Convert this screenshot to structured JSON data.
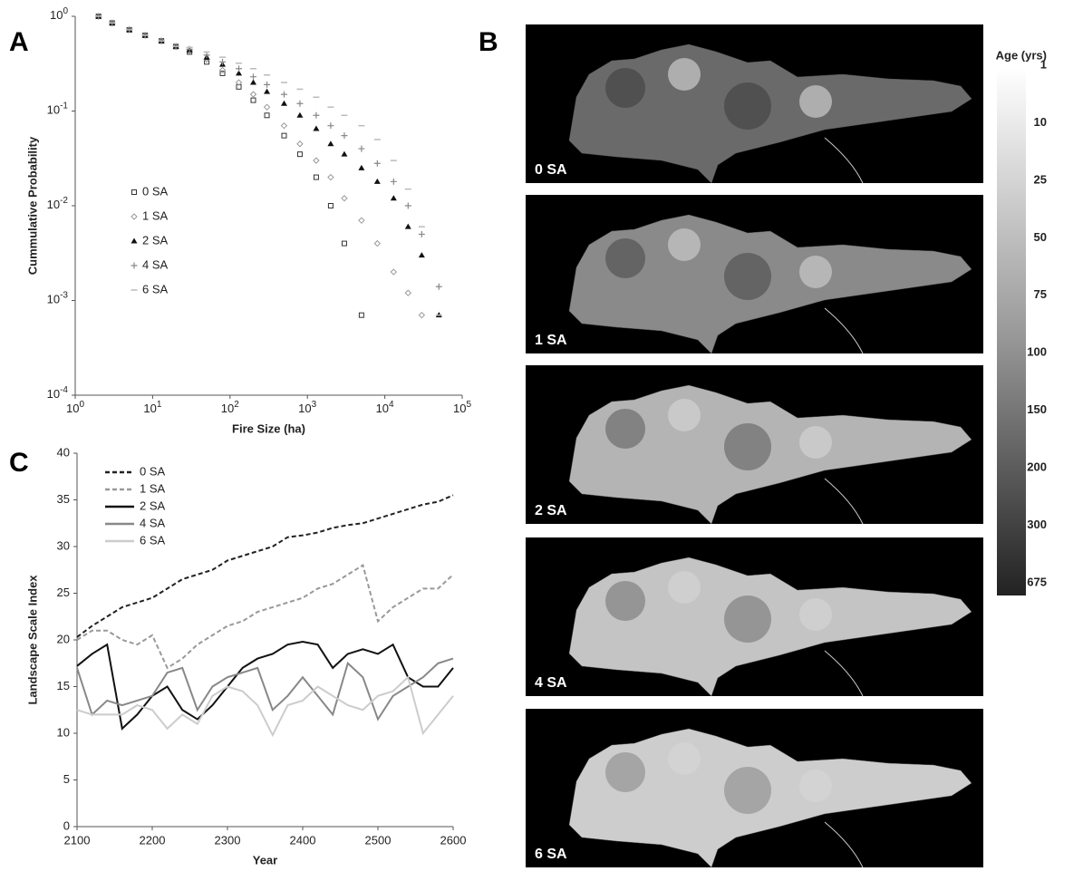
{
  "chart_data": [
    {
      "type": "scatter",
      "panel_label": "A",
      "xlabel": "Fire Size (ha)",
      "ylabel": "Cummulative Probability",
      "xscale": "log",
      "yscale": "log",
      "xlim": [
        1,
        100000
      ],
      "ylim": [
        0.0001,
        1
      ],
      "xticks": [
        {
          "value": 1,
          "label": "10",
          "exponent": "0"
        },
        {
          "value": 10,
          "label": "10",
          "exponent": "1"
        },
        {
          "value": 100,
          "label": "10",
          "exponent": "2"
        },
        {
          "value": 1000,
          "label": "10",
          "exponent": "3"
        },
        {
          "value": 10000,
          "label": "10",
          "exponent": "4"
        },
        {
          "value": 100000,
          "label": "10",
          "exponent": "5"
        }
      ],
      "yticks": [
        {
          "value": 1,
          "label": "10",
          "exponent": "0"
        },
        {
          "value": 0.1,
          "label": "10",
          "exponent": "-1"
        },
        {
          "value": 0.01,
          "label": "10",
          "exponent": "-2"
        },
        {
          "value": 0.001,
          "label": "10",
          "exponent": "-3"
        },
        {
          "value": 0.0001,
          "label": "10",
          "exponent": "-4"
        }
      ],
      "series": [
        {
          "name": "0 SA",
          "color": "#333333",
          "marker": "square",
          "x": [
            2,
            3,
            5,
            8,
            13,
            20,
            30,
            50,
            80,
            130,
            200,
            300,
            500,
            800,
            1300,
            2000,
            3000,
            5000
          ],
          "values": [
            1,
            0.85,
            0.72,
            0.63,
            0.55,
            0.48,
            0.42,
            0.33,
            0.25,
            0.18,
            0.13,
            0.09,
            0.055,
            0.035,
            0.02,
            0.01,
            0.004,
            0.0007
          ]
        },
        {
          "name": "1 SA",
          "color": "#999999",
          "marker": "diamond",
          "x": [
            2,
            3,
            5,
            8,
            13,
            20,
            30,
            50,
            80,
            130,
            200,
            300,
            500,
            800,
            1300,
            2000,
            3000,
            5000,
            8000,
            13000,
            20000,
            30000
          ],
          "values": [
            1,
            0.85,
            0.72,
            0.63,
            0.55,
            0.48,
            0.43,
            0.35,
            0.27,
            0.2,
            0.15,
            0.11,
            0.07,
            0.045,
            0.03,
            0.02,
            0.012,
            0.007,
            0.004,
            0.002,
            0.0012,
            0.0007
          ]
        },
        {
          "name": "2 SA",
          "color": "#111111",
          "marker": "triangle",
          "x": [
            2,
            3,
            5,
            8,
            13,
            20,
            30,
            50,
            80,
            130,
            200,
            300,
            500,
            800,
            1300,
            2000,
            3000,
            5000,
            8000,
            13000,
            20000,
            30000,
            50000
          ],
          "values": [
            1,
            0.85,
            0.72,
            0.63,
            0.55,
            0.48,
            0.44,
            0.37,
            0.31,
            0.25,
            0.2,
            0.16,
            0.12,
            0.09,
            0.065,
            0.045,
            0.035,
            0.025,
            0.018,
            0.012,
            0.006,
            0.003,
            0.0007
          ]
        },
        {
          "name": "4 SA",
          "color": "#888888",
          "marker": "plus",
          "x": [
            2,
            3,
            5,
            8,
            13,
            20,
            30,
            50,
            80,
            130,
            200,
            300,
            500,
            800,
            1300,
            2000,
            3000,
            5000,
            8000,
            13000,
            20000,
            30000,
            50000
          ],
          "values": [
            1,
            0.85,
            0.72,
            0.63,
            0.55,
            0.48,
            0.45,
            0.39,
            0.33,
            0.28,
            0.23,
            0.19,
            0.15,
            0.12,
            0.09,
            0.07,
            0.055,
            0.04,
            0.028,
            0.018,
            0.01,
            0.005,
            0.0014
          ]
        },
        {
          "name": "6 SA",
          "color": "#bbbbbb",
          "marker": "dash",
          "x": [
            2,
            3,
            5,
            8,
            13,
            20,
            30,
            50,
            80,
            130,
            200,
            300,
            500,
            800,
            1300,
            2000,
            3000,
            5000,
            8000,
            13000,
            20000,
            30000,
            50000
          ],
          "values": [
            1,
            0.85,
            0.72,
            0.63,
            0.55,
            0.48,
            0.47,
            0.42,
            0.37,
            0.32,
            0.28,
            0.24,
            0.2,
            0.17,
            0.14,
            0.11,
            0.09,
            0.07,
            0.05,
            0.03,
            0.015,
            0.006,
            0.0007
          ]
        }
      ]
    },
    {
      "type": "map",
      "panel_label": "B",
      "maps": [
        "0 SA",
        "1 SA",
        "2 SA",
        "4 SA",
        "6 SA"
      ],
      "colorbar": {
        "title": "Age (yrs)",
        "labels": [
          1,
          10,
          25,
          50,
          75,
          100,
          150,
          200,
          300,
          675
        ]
      }
    },
    {
      "type": "line",
      "panel_label": "C",
      "xlabel": "Year",
      "ylabel": "Landscape Scale Index",
      "xlim": [
        2100,
        2600
      ],
      "ylim": [
        0,
        40
      ],
      "xticks": [
        2100,
        2200,
        2300,
        2400,
        2500,
        2600
      ],
      "yticks": [
        0,
        5,
        10,
        15,
        20,
        25,
        30,
        35,
        40
      ],
      "x": [
        2100,
        2120,
        2140,
        2160,
        2180,
        2200,
        2220,
        2240,
        2260,
        2280,
        2300,
        2320,
        2340,
        2360,
        2380,
        2400,
        2420,
        2440,
        2460,
        2480,
        2500,
        2520,
        2540,
        2560,
        2580,
        2600
      ],
      "series": [
        {
          "name": "0 SA",
          "color": "#222222",
          "linestyle": "dashed",
          "values": [
            20.3,
            21.5,
            22.5,
            23.5,
            24,
            24.5,
            25.5,
            26.5,
            27,
            27.5,
            28.5,
            29,
            29.5,
            30,
            31,
            31.2,
            31.5,
            32,
            32.3,
            32.5,
            33,
            33.5,
            34,
            34.5,
            34.8,
            35.5
          ]
        },
        {
          "name": "1 SA",
          "color": "#999999",
          "linestyle": "dashed",
          "values": [
            20,
            21,
            21,
            20,
            19.5,
            20.5,
            17,
            18,
            19.5,
            20.5,
            21.5,
            22,
            23,
            23.5,
            24,
            24.5,
            25.5,
            26,
            27,
            28,
            22,
            23.5,
            24.5,
            25.5,
            25.5,
            27
          ]
        },
        {
          "name": "2 SA",
          "color": "#111111",
          "linestyle": "solid",
          "values": [
            17.2,
            18.5,
            19.5,
            10.5,
            12,
            14,
            15,
            12.5,
            11.5,
            13,
            15,
            17,
            18,
            18.5,
            19.5,
            19.8,
            19.5,
            17,
            18.5,
            19,
            18.5,
            19.5,
            16,
            15,
            15,
            17
          ]
        },
        {
          "name": "4 SA",
          "color": "#888888",
          "linestyle": "solid",
          "values": [
            17,
            12,
            13.5,
            13,
            13.5,
            14,
            16.5,
            17,
            12.5,
            15,
            16,
            16.5,
            17,
            12.5,
            14,
            16,
            14,
            12,
            17.5,
            16,
            11.5,
            14,
            15,
            16,
            17.5,
            18
          ]
        },
        {
          "name": "6 SA",
          "color": "#cccccc",
          "linestyle": "solid",
          "values": [
            12.5,
            12,
            12,
            12,
            13,
            12.5,
            10.5,
            12,
            11,
            14,
            15,
            14.5,
            13,
            9.8,
            13,
            13.5,
            15,
            14,
            13,
            12.5,
            14,
            14.5,
            16,
            10,
            12,
            14
          ]
        }
      ]
    }
  ]
}
